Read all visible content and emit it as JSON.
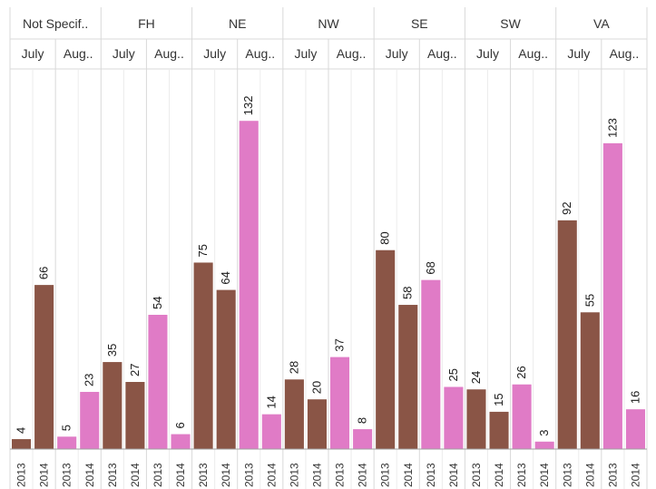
{
  "chart_data": {
    "type": "bar",
    "title": "",
    "xlabel": "",
    "ylabel": "",
    "ylim": [
      0,
      145
    ],
    "grid": false,
    "colors": {
      "July": "#8a5546",
      "August": "#e07bc6"
    },
    "regions": [
      {
        "name": "Not Specif..",
        "months": [
          {
            "label": "July",
            "years": [
              "2013",
              "2014"
            ],
            "values": [
              4,
              66
            ]
          },
          {
            "label": "Aug..",
            "years": [
              "2013",
              "2014"
            ],
            "values": [
              5,
              23
            ]
          }
        ]
      },
      {
        "name": "FH",
        "months": [
          {
            "label": "July",
            "years": [
              "2013",
              "2014"
            ],
            "values": [
              35,
              27
            ]
          },
          {
            "label": "Aug..",
            "years": [
              "2013",
              "2014"
            ],
            "values": [
              54,
              6
            ]
          }
        ]
      },
      {
        "name": "NE",
        "months": [
          {
            "label": "July",
            "years": [
              "2013",
              "2014"
            ],
            "values": [
              75,
              64
            ]
          },
          {
            "label": "Aug..",
            "years": [
              "2013",
              "2014"
            ],
            "values": [
              132,
              14
            ]
          }
        ]
      },
      {
        "name": "NW",
        "months": [
          {
            "label": "July",
            "years": [
              "2013",
              "2014"
            ],
            "values": [
              28,
              20
            ]
          },
          {
            "label": "Aug..",
            "years": [
              "2013",
              "2014"
            ],
            "values": [
              37,
              8
            ]
          }
        ]
      },
      {
        "name": "SE",
        "months": [
          {
            "label": "July",
            "years": [
              "2013",
              "2014"
            ],
            "values": [
              80,
              58
            ]
          },
          {
            "label": "Aug..",
            "years": [
              "2013",
              "2014"
            ],
            "values": [
              68,
              25
            ]
          }
        ]
      },
      {
        "name": "SW",
        "months": [
          {
            "label": "July",
            "years": [
              "2013",
              "2014"
            ],
            "values": [
              24,
              15
            ]
          },
          {
            "label": "Aug..",
            "years": [
              "2013",
              "2014"
            ],
            "values": [
              26,
              3
            ]
          }
        ]
      },
      {
        "name": "VA",
        "months": [
          {
            "label": "July",
            "years": [
              "2013",
              "2014"
            ],
            "values": [
              92,
              55
            ]
          },
          {
            "label": "Aug..",
            "years": [
              "2013",
              "2014"
            ],
            "values": [
              123,
              16
            ]
          }
        ]
      }
    ]
  }
}
